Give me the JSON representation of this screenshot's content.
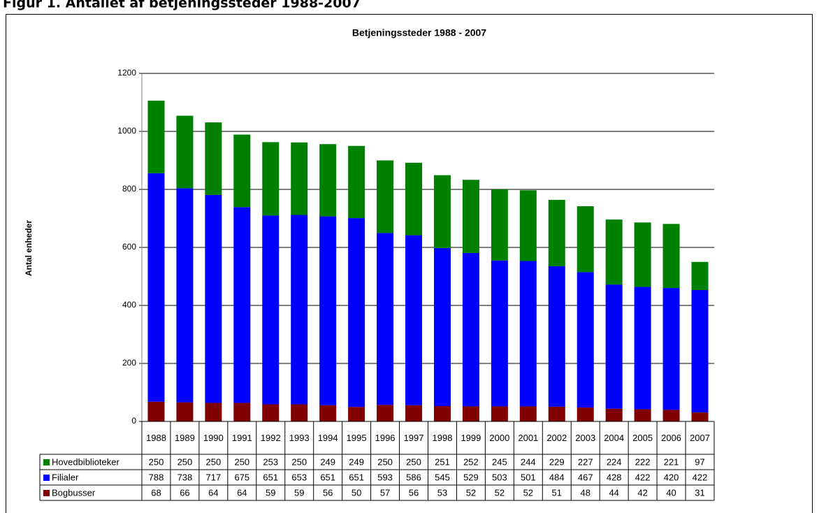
{
  "figure_title": "Figur 1. Antallet af betjeningssteder 1988-2007",
  "chart_data": {
    "type": "stacked_bar",
    "title": "Betjeningssteder 1988 - 2007",
    "y_label": "Antal enheder",
    "categories": [
      "1988",
      "1989",
      "1990",
      "1991",
      "1992",
      "1993",
      "1994",
      "1995",
      "1996",
      "1997",
      "1998",
      "1999",
      "2000",
      "2001",
      "2002",
      "2003",
      "2004",
      "2005",
      "2006",
      "2007"
    ],
    "series": [
      {
        "name": "Hovedbiblioteker",
        "color": "#008000",
        "values": [
          250,
          250,
          250,
          250,
          253,
          250,
          249,
          249,
          250,
          250,
          251,
          252,
          245,
          244,
          229,
          227,
          224,
          222,
          221,
          97
        ]
      },
      {
        "name": "Filialer",
        "color": "#0000ff",
        "values": [
          788,
          738,
          717,
          675,
          651,
          653,
          651,
          651,
          593,
          586,
          545,
          529,
          503,
          501,
          484,
          467,
          428,
          422,
          420,
          422
        ]
      },
      {
        "name": "Bogbusser",
        "color": "#800000",
        "values": [
          68,
          66,
          64,
          64,
          59,
          59,
          56,
          50,
          57,
          56,
          53,
          52,
          52,
          52,
          51,
          48,
          44,
          42,
          40,
          31
        ]
      }
    ],
    "ylim": [
      0,
      1200
    ],
    "yticks": [
      0,
      200,
      400,
      600,
      800,
      1000,
      1200
    ],
    "grid": true,
    "data_table": true
  }
}
